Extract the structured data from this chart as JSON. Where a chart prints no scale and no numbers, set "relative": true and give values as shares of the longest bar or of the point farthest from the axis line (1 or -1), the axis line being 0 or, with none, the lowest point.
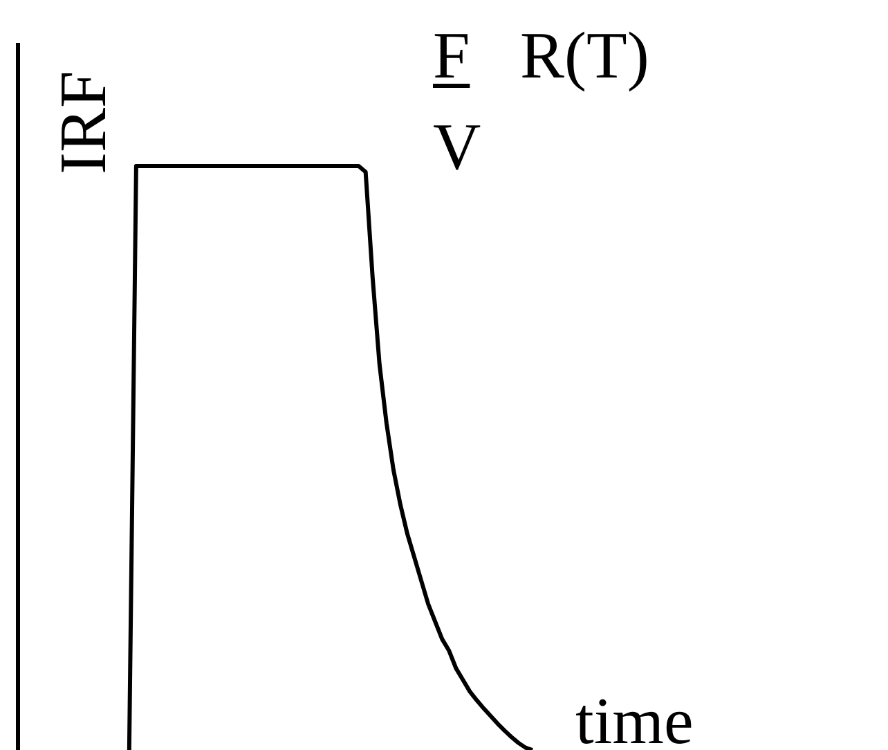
{
  "chart_data": {
    "type": "line",
    "relative": true,
    "ylabel": "IRF",
    "xlabel": "time",
    "annotations": [
      "F",
      "V",
      "R(T)"
    ],
    "color": "#000000",
    "marker": "none",
    "legend": false,
    "categories": [
      null,
      null,
      null,
      null,
      null,
      null,
      null,
      null,
      null,
      null,
      null,
      null,
      null,
      null,
      null,
      null,
      null,
      null,
      null,
      null,
      null,
      null,
      null,
      null,
      null,
      null,
      null,
      null,
      null,
      null,
      null,
      null,
      null,
      null,
      null,
      null,
      null,
      null,
      null,
      null,
      null,
      null,
      null,
      null,
      null,
      null,
      null,
      null,
      null,
      null,
      null,
      null,
      null,
      null,
      null,
      null,
      null,
      null,
      null,
      null,
      null,
      null,
      null,
      null,
      null,
      null,
      null,
      null,
      null,
      null,
      null,
      null,
      null,
      null,
      null,
      null
    ],
    "values": [
      null,
      null,
      null,
      null,
      null,
      null,
      null,
      null,
      null,
      null,
      null,
      null,
      null,
      null,
      null,
      null,
      0,
      1,
      1,
      1,
      1,
      1,
      1,
      1,
      1,
      1,
      1,
      1,
      1,
      1,
      1,
      1,
      1,
      1,
      1,
      1,
      1,
      1,
      1,
      1,
      1,
      1,
      1,
      1,
      1,
      1,
      1,
      1,
      1,
      1,
      0.99,
      0.81,
      0.66,
      0.56,
      0.48,
      0.42,
      0.37,
      0.33,
      0.29,
      0.25,
      0.22,
      0.19,
      0.17,
      0.14,
      0.12,
      0.1,
      0.085,
      0.071,
      0.058,
      0.045,
      0.033,
      0.022,
      0.012,
      0.004,
      0,
      null
    ]
  }
}
